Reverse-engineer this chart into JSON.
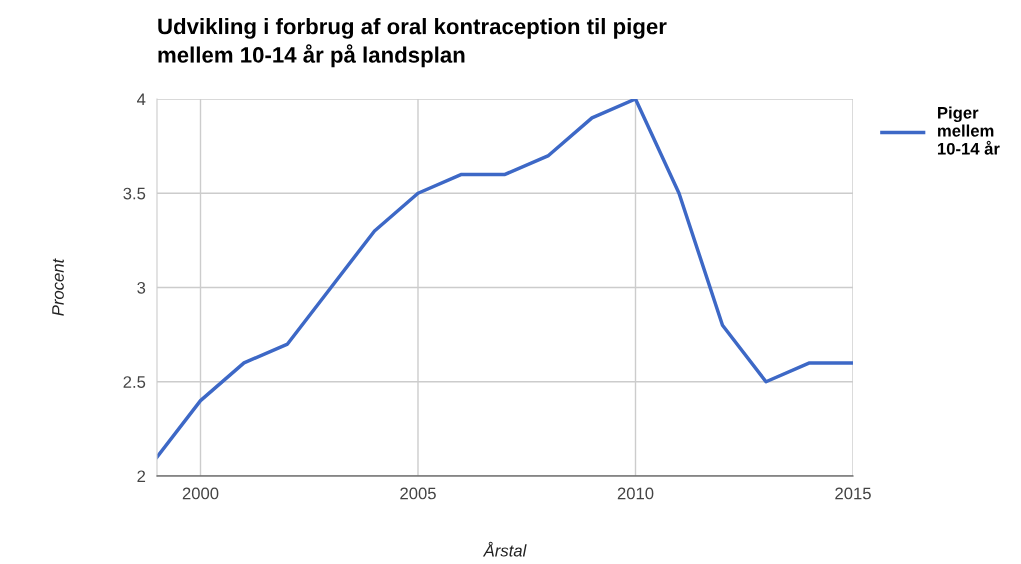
{
  "chart_data": {
    "type": "line",
    "title": "Udvikling i forbrug af oral kontraception til piger\nmellem 10-14 år på landsplan",
    "xlabel": "Årstal",
    "ylabel": "Procent",
    "x": [
      1999,
      2000,
      2001,
      2002,
      2003,
      2004,
      2005,
      2006,
      2007,
      2008,
      2009,
      2010,
      2011,
      2012,
      2013,
      2014,
      2015
    ],
    "series": [
      {
        "name": "Piger\nmellem\n10-14 år",
        "color": "#3d68c6",
        "values": [
          2.1,
          2.4,
          2.6,
          2.7,
          3.0,
          3.3,
          3.5,
          3.6,
          3.6,
          3.7,
          3.9,
          4.0,
          3.5,
          2.8,
          2.5,
          2.6,
          2.6
        ]
      }
    ],
    "xlim": [
      1999,
      2015
    ],
    "xticks": [
      2000,
      2005,
      2010,
      2015
    ],
    "ylim": [
      2,
      4
    ],
    "yticks": [
      2,
      2.5,
      3,
      3.5,
      4
    ],
    "grid": true,
    "legend": "top right",
    "marker": "none",
    "line_style": "solid"
  }
}
